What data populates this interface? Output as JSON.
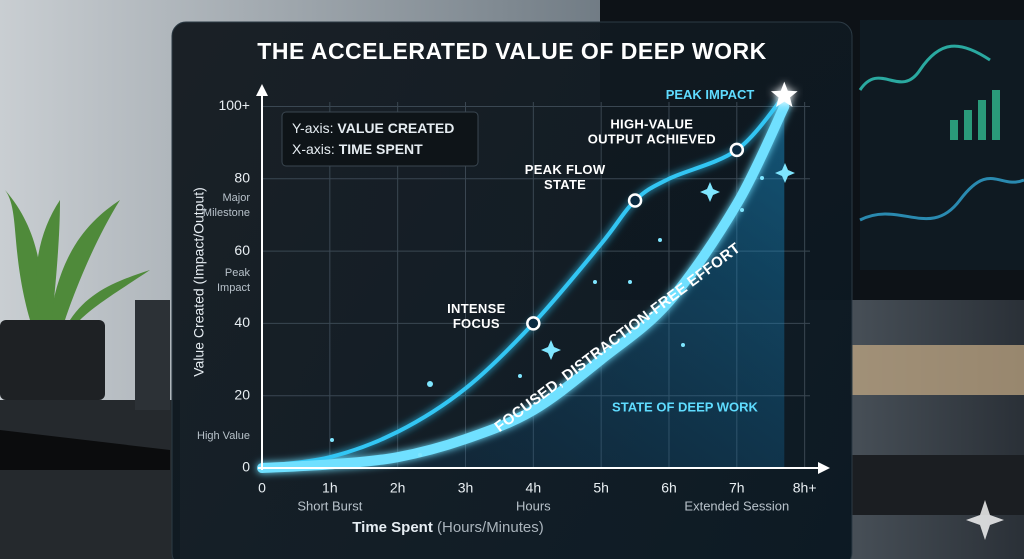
{
  "chart_data": {
    "type": "line",
    "title": "THE ACCELERATED VALUE OF DEEP WORK",
    "y_label": "Value Created (Impact/Output)",
    "x_label": {
      "main": "Time Spent",
      "detail": "(Hours/Minutes)"
    },
    "key": [
      {
        "prefix": "Y-axis:",
        "text": "VALUE CREATED"
      },
      {
        "prefix": "X-axis:",
        "text": "TIME SPENT"
      }
    ],
    "xlim": [
      0,
      8.3
    ],
    "ylim": [
      0,
      104
    ],
    "xticks": [
      0,
      {
        "value": 1,
        "label": "1h"
      },
      {
        "value": 2,
        "label": "2h"
      },
      {
        "value": 3,
        "label": "3h"
      },
      {
        "value": 4,
        "label": "4h"
      },
      {
        "value": 5,
        "label": "5h"
      },
      {
        "value": 6,
        "label": "6h"
      },
      {
        "value": 7,
        "label": "7h"
      },
      {
        "value": 8,
        "label": "8h+"
      }
    ],
    "yticks": [
      0,
      20,
      40,
      60,
      80,
      {
        "value": 100,
        "label": "100+"
      }
    ],
    "y_side_labels": [
      "High Value",
      "Peak Impact",
      "Major Milestone"
    ],
    "x_side_labels": [
      "Short Burst",
      "Hours",
      "Extended Session"
    ],
    "grid": true,
    "series": [
      {
        "color": "#33c6f4",
        "x": [
          0,
          1,
          2,
          3,
          4,
          5,
          5.5,
          6,
          7,
          7.7
        ],
        "values": [
          0.5,
          3,
          10,
          22,
          40,
          62,
          74,
          80,
          88,
          103
        ]
      },
      {
        "name": "FOCUSED, DISTRACTION-FREE EFFORT",
        "color": "#6fe0ff",
        "x": [
          0,
          1,
          2,
          3,
          4,
          5,
          6,
          7,
          7.7
        ],
        "values": [
          0,
          1,
          3,
          8,
          16,
          30,
          46,
          73,
          100
        ]
      }
    ],
    "annotations": [
      {
        "lines": [
          "INTENSE",
          "FOCUS"
        ],
        "x": 4,
        "y": 40
      },
      {
        "lines": [
          "PEAK FLOW",
          "STATE"
        ],
        "x": 5.5,
        "y": 74
      },
      {
        "lines": [
          "HIGH-VALUE",
          "OUTPUT ACHIEVED"
        ],
        "x": 7,
        "y": 88
      },
      {
        "lines": [
          "PEAK IMPACT"
        ],
        "x": 7.7,
        "y": 103
      }
    ],
    "region_label": "STATE OF DEEP WORK"
  }
}
